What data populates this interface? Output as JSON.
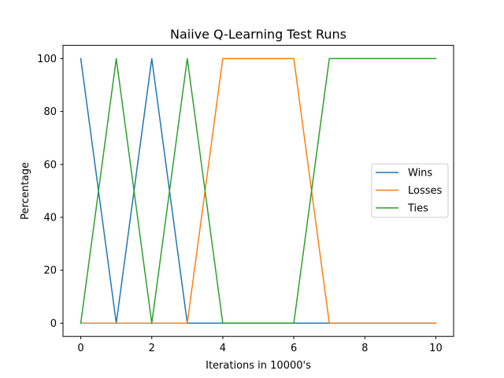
{
  "chart_data": {
    "type": "line",
    "title": "Naiive Q-Learning Test Runs",
    "xlabel": "Iterations in 10000's",
    "ylabel": "Percentage",
    "xlim": [
      -0.5,
      10.5
    ],
    "ylim": [
      -5,
      105
    ],
    "xticks": [
      0,
      2,
      4,
      6,
      8,
      10
    ],
    "yticks": [
      0,
      20,
      40,
      60,
      80,
      100
    ],
    "grid": false,
    "legend_position": "center-right",
    "x": [
      0,
      1,
      2,
      3,
      4,
      5,
      6,
      7,
      8,
      9,
      10
    ],
    "series": [
      {
        "name": "Wins",
        "color": "#1f77b4",
        "values": [
          100,
          0,
          100,
          0,
          0,
          0,
          0,
          0,
          0,
          0,
          0
        ]
      },
      {
        "name": "Losses",
        "color": "#ff7f0e",
        "values": [
          0,
          0,
          0,
          0,
          100,
          100,
          100,
          0,
          0,
          0,
          0
        ]
      },
      {
        "name": "Ties",
        "color": "#2ca02c",
        "values": [
          0,
          100,
          0,
          100,
          0,
          0,
          0,
          100,
          100,
          100,
          100
        ]
      }
    ]
  }
}
